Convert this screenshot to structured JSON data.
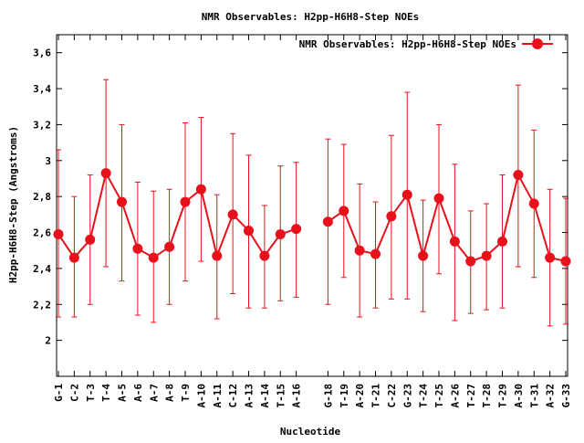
{
  "chart_data": {
    "type": "line",
    "title": "NMR Observables: H2pp-H6H8-Step NOEs",
    "xlabel": "Nucleotide",
    "ylabel": "H2pp-H6H8-Step (Angstroms)",
    "ylim": [
      1.8,
      3.7
    ],
    "yticks": [
      2,
      2.2,
      2.4,
      2.6,
      2.8,
      3,
      3.2,
      3.4,
      3.6
    ],
    "ytick_labels": [
      "2",
      "2,2",
      "2,4",
      "2,6",
      "2,8",
      "3",
      "3,2",
      "3,4",
      "3,6"
    ],
    "grid": false,
    "legend_position": "top-right",
    "color": "#e8101a",
    "categories": [
      "G-1",
      "C-2",
      "T-3",
      "T-4",
      "A-5",
      "A-6",
      "A-7",
      "A-8",
      "T-9",
      "A-10",
      "A-11",
      "C-12",
      "A-13",
      "A-14",
      "T-15",
      "A-16",
      "",
      "G-18",
      "T-19",
      "A-20",
      "T-21",
      "C-22",
      "G-23",
      "T-24",
      "T-25",
      "A-26",
      "T-27",
      "T-28",
      "T-29",
      "A-30",
      "T-31",
      "A-32",
      "G-33"
    ],
    "series": [
      {
        "name": "NMR Observables: H2pp-H6H8-Step NOEs",
        "values": [
          2.59,
          2.46,
          2.56,
          2.93,
          2.77,
          2.51,
          2.46,
          2.52,
          2.77,
          2.84,
          2.47,
          2.7,
          2.61,
          2.47,
          2.59,
          2.62,
          null,
          2.66,
          2.72,
          2.5,
          2.48,
          2.69,
          2.81,
          2.47,
          2.79,
          2.55,
          2.44,
          2.47,
          2.55,
          2.92,
          2.76,
          2.46,
          2.44
        ],
        "err_low": [
          2.13,
          2.13,
          2.2,
          2.41,
          2.33,
          2.14,
          2.1,
          2.2,
          2.33,
          2.44,
          2.12,
          2.26,
          2.18,
          2.18,
          2.22,
          2.24,
          null,
          2.2,
          2.35,
          2.13,
          2.18,
          2.23,
          2.23,
          2.16,
          2.37,
          2.11,
          2.15,
          2.17,
          2.18,
          2.41,
          2.35,
          2.08,
          2.09
        ],
        "err_high": [
          3.06,
          2.8,
          2.92,
          3.45,
          3.2,
          2.88,
          2.83,
          2.84,
          3.21,
          3.24,
          2.81,
          3.15,
          3.03,
          2.75,
          2.97,
          2.99,
          null,
          3.12,
          3.09,
          2.87,
          2.77,
          3.14,
          3.38,
          2.78,
          3.2,
          2.98,
          2.72,
          2.76,
          2.92,
          3.42,
          3.17,
          2.84,
          2.79
        ]
      }
    ]
  }
}
